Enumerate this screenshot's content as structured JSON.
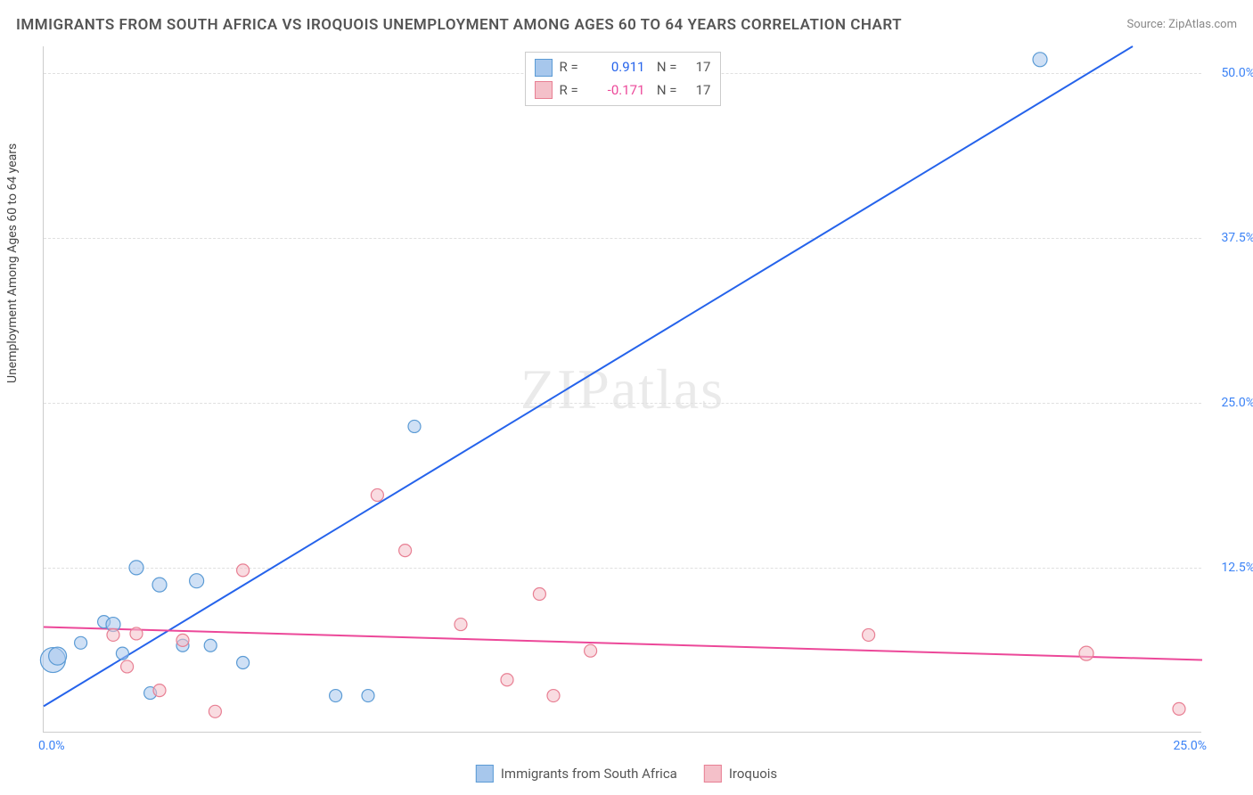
{
  "title": "IMMIGRANTS FROM SOUTH AFRICA VS IROQUOIS UNEMPLOYMENT AMONG AGES 60 TO 64 YEARS CORRELATION CHART",
  "source": "Source: ZipAtlas.com",
  "ylabel": "Unemployment Among Ages 60 to 64 years",
  "watermark": "ZIPatlas",
  "chart": {
    "type": "scatter",
    "background_color": "#ffffff",
    "grid_color": "#e0e0e0",
    "xlim": [
      0,
      25
    ],
    "ylim": [
      0,
      52
    ],
    "yticks": [
      {
        "v": 12.5,
        "label": "12.5%"
      },
      {
        "v": 25,
        "label": "25.0%"
      },
      {
        "v": 37.5,
        "label": "37.5%"
      },
      {
        "v": 50,
        "label": "50.0%"
      }
    ],
    "xtick_left": "0.0%",
    "xtick_right": "25.0%",
    "series": [
      {
        "name": "Immigrants from South Africa",
        "fill": "#a7c7ec",
        "stroke": "#5b9bd5",
        "line_color": "#2563eb",
        "R": "0.911",
        "N": "17",
        "points": [
          {
            "x": 0.2,
            "y": 5.5,
            "r": 14
          },
          {
            "x": 0.3,
            "y": 5.8,
            "r": 10
          },
          {
            "x": 0.8,
            "y": 6.8,
            "r": 7
          },
          {
            "x": 1.3,
            "y": 8.4,
            "r": 7
          },
          {
            "x": 1.5,
            "y": 8.2,
            "r": 8
          },
          {
            "x": 1.7,
            "y": 6.0,
            "r": 7
          },
          {
            "x": 2.0,
            "y": 12.5,
            "r": 8
          },
          {
            "x": 2.3,
            "y": 3.0,
            "r": 7
          },
          {
            "x": 2.5,
            "y": 11.2,
            "r": 8
          },
          {
            "x": 3.0,
            "y": 6.6,
            "r": 7
          },
          {
            "x": 3.3,
            "y": 11.5,
            "r": 8
          },
          {
            "x": 3.6,
            "y": 6.6,
            "r": 7
          },
          {
            "x": 4.3,
            "y": 5.3,
            "r": 7
          },
          {
            "x": 6.3,
            "y": 2.8,
            "r": 7
          },
          {
            "x": 7.0,
            "y": 2.8,
            "r": 7
          },
          {
            "x": 8.0,
            "y": 23.2,
            "r": 7
          },
          {
            "x": 21.5,
            "y": 51.0,
            "r": 8
          }
        ],
        "trend": {
          "x1": 0,
          "y1": 2.0,
          "x2": 23.5,
          "y2": 52.0
        }
      },
      {
        "name": "Iroquois",
        "fill": "#f4c0c9",
        "stroke": "#e87f93",
        "line_color": "#ec4899",
        "R": "-0.171",
        "N": "17",
        "points": [
          {
            "x": 1.5,
            "y": 7.4,
            "r": 7
          },
          {
            "x": 1.8,
            "y": 5.0,
            "r": 7
          },
          {
            "x": 2.0,
            "y": 7.5,
            "r": 7
          },
          {
            "x": 2.5,
            "y": 3.2,
            "r": 7
          },
          {
            "x": 3.0,
            "y": 7.0,
            "r": 7
          },
          {
            "x": 3.7,
            "y": 1.6,
            "r": 7
          },
          {
            "x": 4.3,
            "y": 12.3,
            "r": 7
          },
          {
            "x": 7.2,
            "y": 18.0,
            "r": 7
          },
          {
            "x": 7.8,
            "y": 13.8,
            "r": 7
          },
          {
            "x": 9.0,
            "y": 8.2,
            "r": 7
          },
          {
            "x": 10.7,
            "y": 10.5,
            "r": 7
          },
          {
            "x": 11.0,
            "y": 2.8,
            "r": 7
          },
          {
            "x": 11.8,
            "y": 6.2,
            "r": 7
          },
          {
            "x": 17.8,
            "y": 7.4,
            "r": 7
          },
          {
            "x": 22.5,
            "y": 6.0,
            "r": 8
          },
          {
            "x": 24.5,
            "y": 1.8,
            "r": 7
          },
          {
            "x": 10.0,
            "y": 4.0,
            "r": 7
          }
        ],
        "trend": {
          "x1": 0,
          "y1": 8.0,
          "x2": 25,
          "y2": 5.5
        }
      }
    ]
  },
  "legend_items": [
    {
      "label": "Immigrants from South Africa",
      "fill": "#a7c7ec",
      "stroke": "#5b9bd5"
    },
    {
      "label": "Iroquois",
      "fill": "#f4c0c9",
      "stroke": "#e87f93"
    }
  ]
}
